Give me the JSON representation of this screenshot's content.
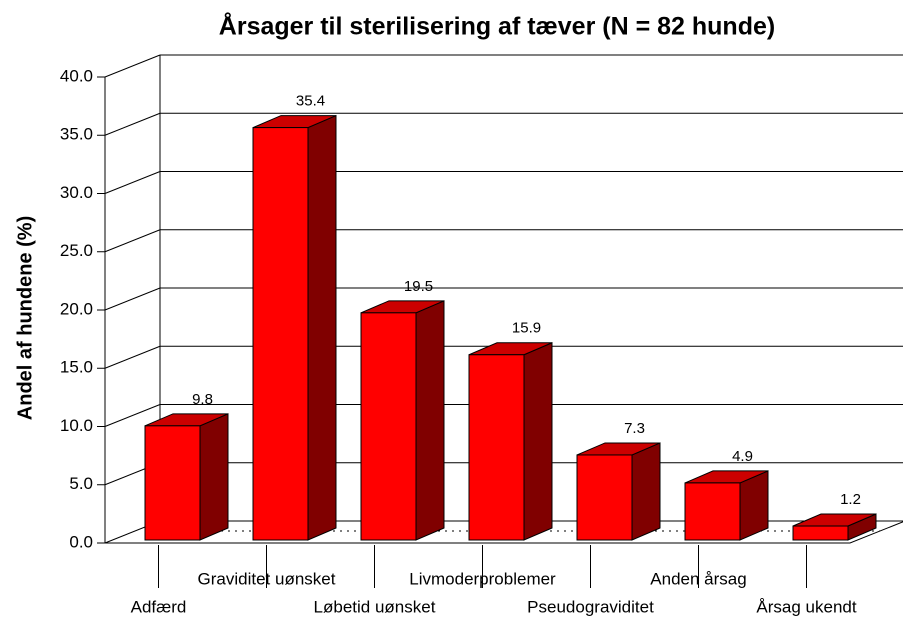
{
  "chart_data": {
    "type": "bar3d",
    "title": "Årsager til sterilisering af tæver (N = 82 hunde)",
    "y_label": "Andel af hundene (%)",
    "categories": [
      "Adfærd",
      "Graviditet uønsket",
      "Løbetid uønsket",
      "Livmoderproblemer",
      "Pseudograviditet",
      "Anden årsag",
      "Årsag ukendt"
    ],
    "values": [
      9.8,
      35.4,
      19.5,
      15.9,
      7.3,
      4.9,
      1.2
    ],
    "color": "#ff0000",
    "ylim": [
      0,
      40
    ],
    "yticks": [
      {
        "value": 0,
        "label": "0.0"
      },
      {
        "value": 5,
        "label": "5.0"
      },
      {
        "value": 10,
        "label": "10.0"
      },
      {
        "value": 15,
        "label": "15.0"
      },
      {
        "value": 20,
        "label": "20.0"
      },
      {
        "value": 25,
        "label": "25.0"
      },
      {
        "value": 30,
        "label": "30.0"
      },
      {
        "value": 35,
        "label": "35.0"
      },
      {
        "value": 40,
        "label": "40.0"
      }
    ],
    "grid": true
  }
}
